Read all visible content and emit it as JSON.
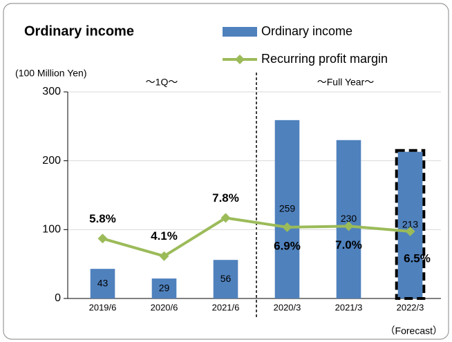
{
  "chart_data": {
    "type": "bar",
    "title": "Ordinary income",
    "y_axis_label": "(100 Million Yen)",
    "annotations": [
      "～1Q～",
      "～Full Year～",
      "（Forecast）"
    ],
    "categories": [
      "2019/6",
      "2020/6",
      "2021/6",
      "2020/3",
      "2021/3",
      "2022/3"
    ],
    "series": [
      {
        "name": "Ordinary income",
        "type": "bar",
        "color": "#4f81bd",
        "values": [
          43,
          29,
          56,
          259,
          230,
          213
        ]
      },
      {
        "name": "Recurring profit margin",
        "type": "line",
        "axis": "y2",
        "color": "#9bbb59",
        "values": [
          5.8,
          4.1,
          7.8,
          6.9,
          7.0,
          6.5
        ],
        "value_labels": [
          "5.8%",
          "4.1%",
          "7.8%",
          "6.9%",
          "7.0%",
          "6.5%"
        ]
      }
    ],
    "ylim": [
      0,
      300
    ],
    "yticks": [
      0,
      100,
      200,
      300
    ],
    "y2lim": [
      0,
      20
    ],
    "grid": true,
    "outlined": [
      5
    ]
  }
}
